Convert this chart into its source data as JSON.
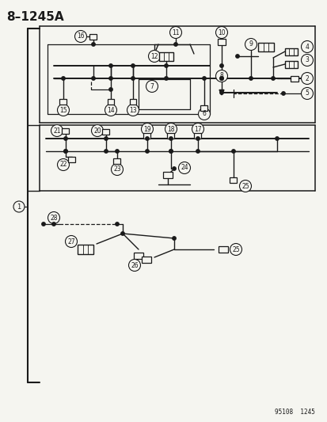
{
  "title": "8–1245A",
  "footer": "95108  1245",
  "bg_color": "#f5f5f0",
  "line_color": "#1a1a1a",
  "title_fontsize": 11,
  "fig_width": 4.14,
  "fig_height": 5.33,
  "dpi": 100
}
